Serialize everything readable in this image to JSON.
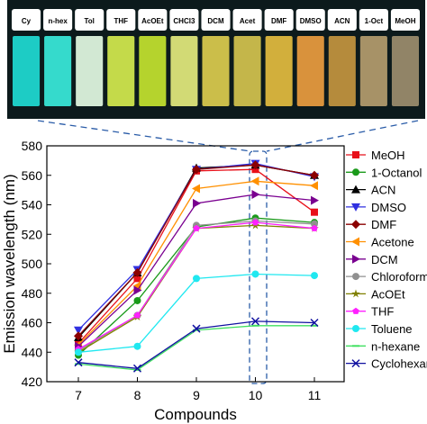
{
  "photo": {
    "vials": [
      {
        "label": "Cy",
        "color": "#1fe0d8"
      },
      {
        "label": "n-hex",
        "color": "#3af0e0"
      },
      {
        "label": "Tol",
        "color": "#e8ffe8"
      },
      {
        "label": "THF",
        "color": "#d8f050"
      },
      {
        "label": "AcOEt",
        "color": "#c8e830"
      },
      {
        "label": "CHCl3",
        "color": "#e8f080"
      },
      {
        "label": "DCM",
        "color": "#e0d050"
      },
      {
        "label": "Acet",
        "color": "#d8c850"
      },
      {
        "label": "DMF",
        "color": "#e8c040"
      },
      {
        "label": "DMSO",
        "color": "#f0a040"
      },
      {
        "label": "ACN",
        "color": "#c89840"
      },
      {
        "label": "1-Oct",
        "color": "#b8a070"
      },
      {
        "label": "MeOH",
        "color": "#a09070"
      }
    ]
  },
  "chart_data": {
    "type": "line",
    "xlabel": "Compounds",
    "ylabel": "Emission wavelength (nm)",
    "categories": [
      "7",
      "8",
      "9",
      "10",
      "11"
    ],
    "ylim": [
      420,
      580
    ],
    "yticks": [
      420,
      440,
      460,
      480,
      500,
      520,
      540,
      560,
      580
    ],
    "legend_position": "right",
    "series": [
      {
        "name": "MeOH",
        "color": "#e8101a",
        "marker": "square",
        "values": [
          446,
          490,
          563,
          564,
          535
        ]
      },
      {
        "name": "1-Octanol",
        "color": "#1a9a1a",
        "marker": "circle",
        "values": [
          438,
          475,
          525,
          531,
          528
        ]
      },
      {
        "name": "ACN",
        "color": "#000000",
        "marker": "triangle-up",
        "values": [
          450,
          494,
          565,
          567,
          560
        ]
      },
      {
        "name": "DMSO",
        "color": "#3030e0",
        "marker": "triangle-down",
        "values": [
          455,
          496,
          564,
          568,
          559
        ]
      },
      {
        "name": "DMF",
        "color": "#8b0000",
        "marker": "diamond",
        "values": [
          451,
          494,
          564,
          567,
          560
        ]
      },
      {
        "name": "Acetone",
        "color": "#ff9000",
        "marker": "triangle-left",
        "values": [
          445,
          485,
          551,
          556,
          553
        ]
      },
      {
        "name": "DCM",
        "color": "#7a0090",
        "marker": "triangle-right",
        "values": [
          444,
          482,
          541,
          547,
          543
        ]
      },
      {
        "name": "Chloroform",
        "color": "#909090",
        "marker": "circle",
        "values": [
          441,
          465,
          526,
          529,
          527
        ]
      },
      {
        "name": "AcOEt",
        "color": "#808000",
        "marker": "star",
        "values": [
          440,
          464,
          524,
          526,
          524
        ]
      },
      {
        "name": "THF",
        "color": "#ff20ff",
        "marker": "pentagon",
        "values": [
          442,
          465,
          524,
          528,
          524
        ]
      },
      {
        "name": "Toluene",
        "color": "#20e8f0",
        "marker": "circle",
        "values": [
          440,
          444,
          490,
          493,
          492
        ]
      },
      {
        "name": "n-hexane",
        "color": "#40e060",
        "marker": "dash",
        "values": [
          432,
          428,
          455,
          458,
          458
        ]
      },
      {
        "name": "Cyclohexane",
        "color": "#1010a0",
        "marker": "x",
        "values": [
          433,
          429,
          456,
          461,
          460
        ]
      }
    ]
  }
}
